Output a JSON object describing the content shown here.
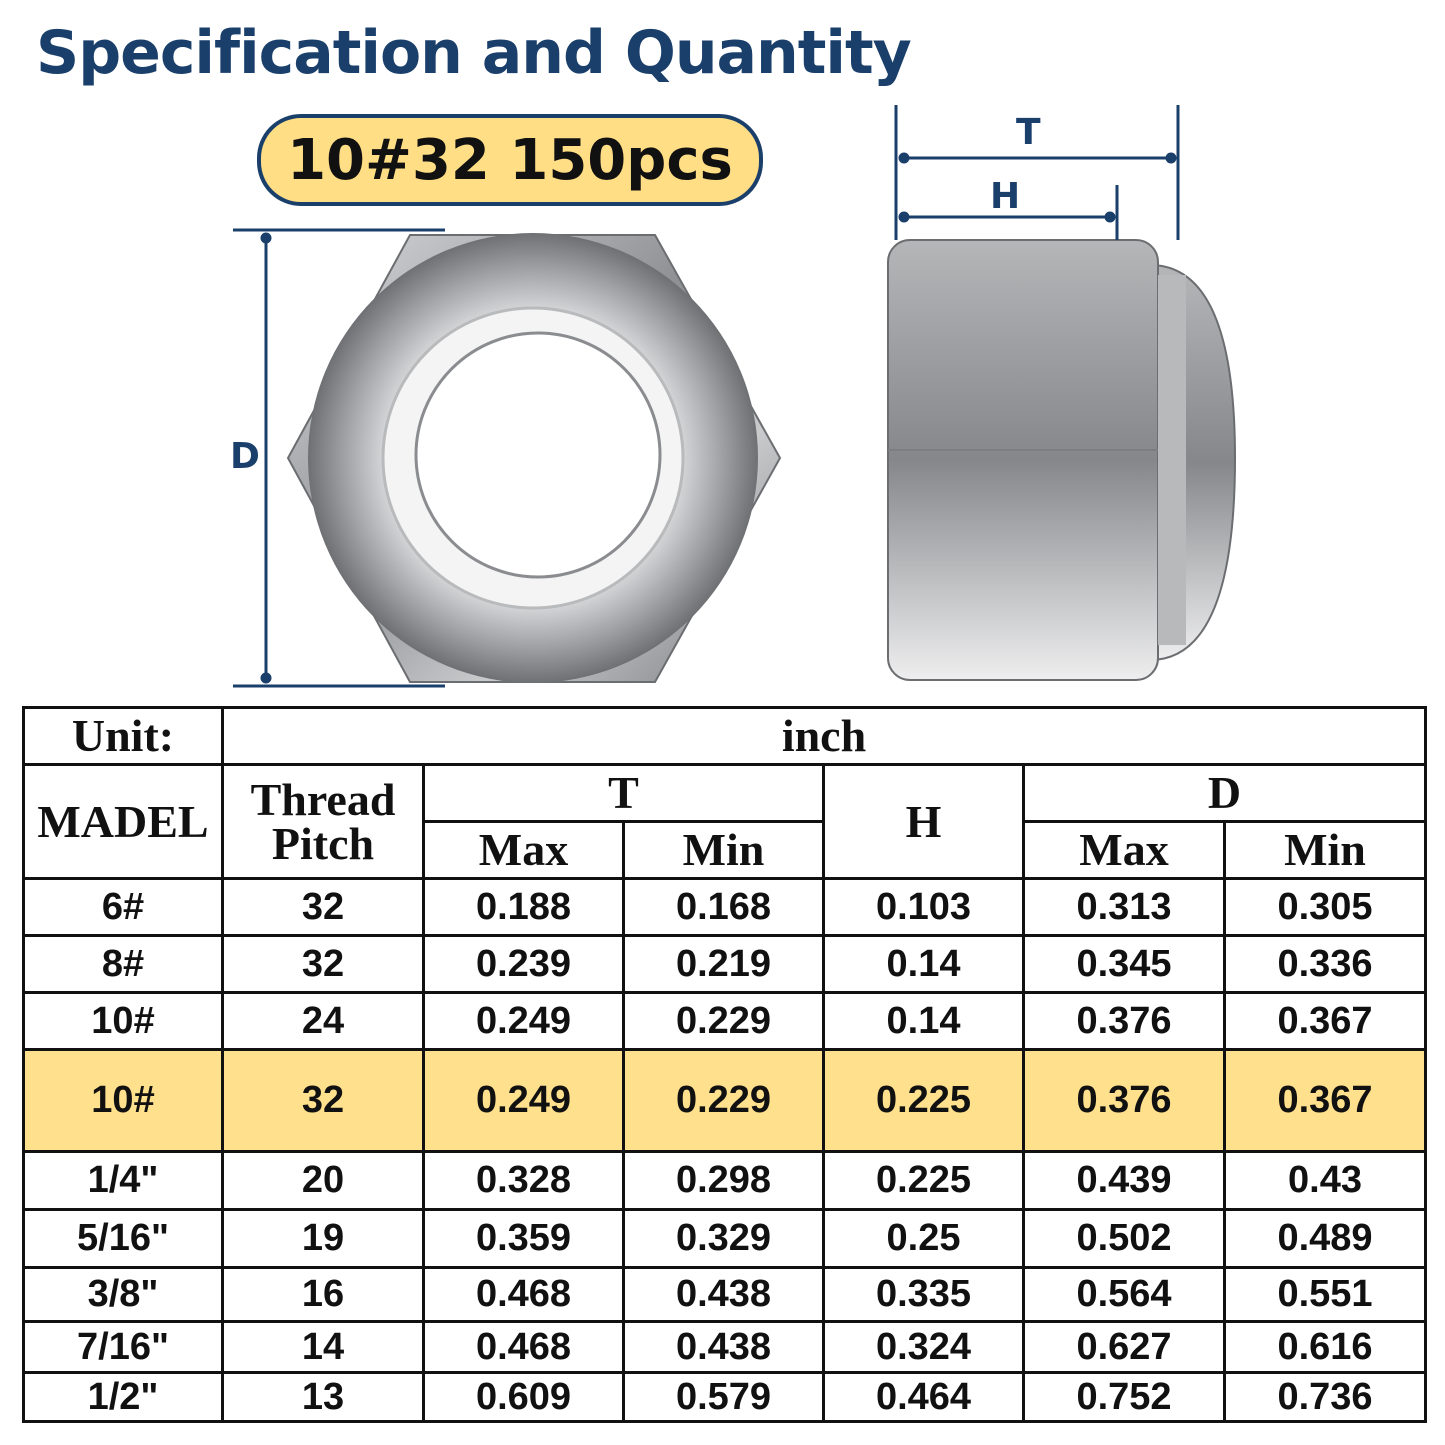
{
  "title": "Specification and Quantity",
  "badge": "10#32 150pcs",
  "dimensions": {
    "T": "T",
    "H": "H",
    "D": "D"
  },
  "colors": {
    "accent_navy": "#1a3f6b",
    "highlight_yellow": "#ffe08c"
  },
  "table": {
    "unit_label": "Unit:",
    "unit_value": "inch",
    "headers": {
      "model": "MADEL",
      "thread_pitch_1": "Thread",
      "thread_pitch_2": "Pitch",
      "T": "T",
      "H": "H",
      "D": "D",
      "t_max": "Max",
      "t_min": "Min",
      "d_max": "Max",
      "d_min": "Min"
    },
    "highlighted_row": 3,
    "rows": [
      [
        "6#",
        "32",
        "0.188",
        "0.168",
        "0.103",
        "0.313",
        "0.305"
      ],
      [
        "8#",
        "32",
        "0.239",
        "0.219",
        "0.14",
        "0.345",
        "0.336"
      ],
      [
        "10#",
        "24",
        "0.249",
        "0.229",
        "0.14",
        "0.376",
        "0.367"
      ],
      [
        "10#",
        "32",
        "0.249",
        "0.229",
        "0.225",
        "0.376",
        "0.367"
      ],
      [
        "1/4\"",
        "20",
        "0.328",
        "0.298",
        "0.225",
        "0.439",
        "0.43"
      ],
      [
        "5/16\"",
        "19",
        "0.359",
        "0.329",
        "0.25",
        "0.502",
        "0.489"
      ],
      [
        "3/8\"",
        "16",
        "0.468",
        "0.438",
        "0.335",
        "0.564",
        "0.551"
      ],
      [
        "7/16\"",
        "14",
        "0.468",
        "0.438",
        "0.324",
        "0.627",
        "0.616"
      ],
      [
        "1/2\"",
        "13",
        "0.609",
        "0.579",
        "0.464",
        "0.752",
        "0.736"
      ]
    ]
  }
}
